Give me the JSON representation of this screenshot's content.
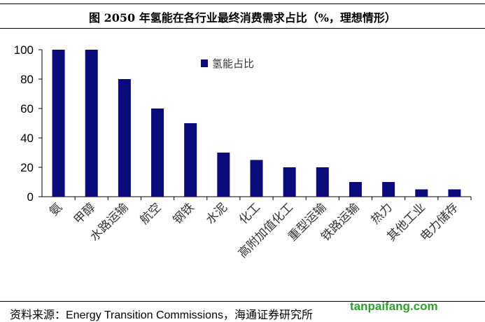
{
  "chart_data": {
    "type": "bar",
    "title": "图 2050 年氢能在各行业最终消费需求占比（%，理想情形）",
    "categories": [
      "氨",
      "甲醇",
      "水路运输",
      "航空",
      "钢铁",
      "水泥",
      "化工",
      "高附加值化工",
      "重型运输",
      "铁路运输",
      "热力",
      "其他工业",
      "电力储存"
    ],
    "series": [
      {
        "name": "氢能占比",
        "values": [
          100,
          100,
          80,
          60,
          50,
          30,
          25,
          20,
          20,
          10,
          10,
          5,
          5
        ]
      }
    ],
    "ylim": [
      0,
      100
    ],
    "yticks": [
      0,
      20,
      40,
      60,
      80,
      100
    ],
    "grid": false,
    "legend": "top-center",
    "color": "#0a0a7a"
  },
  "source": "资料来源：Energy Transition Commissions，海通证券研究所",
  "watermark": "tanpaifang.com"
}
